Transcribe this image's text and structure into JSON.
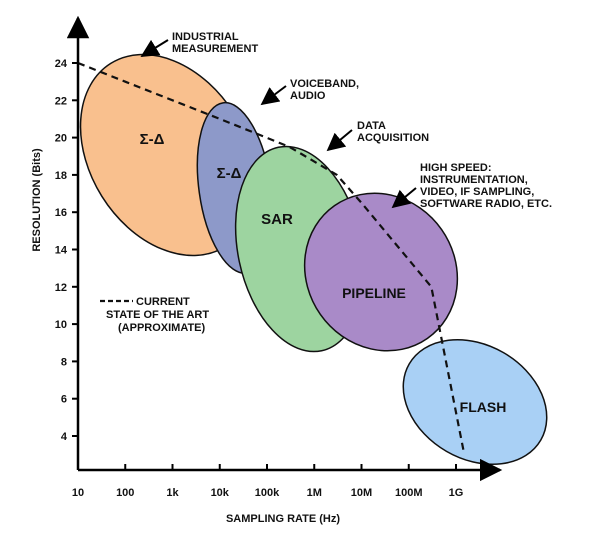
{
  "chart_data": {
    "type": "diagram",
    "xlabel": "SAMPLING RATE (Hz)",
    "ylabel": "RESOLUTION (Bits)",
    "x_ticks": [
      "10",
      "100",
      "1k",
      "10k",
      "100k",
      "1M",
      "10M",
      "100M",
      "1G"
    ],
    "y_ticks": [
      "4",
      "6",
      "8",
      "10",
      "12",
      "14",
      "16",
      "18",
      "20",
      "22",
      "24"
    ],
    "x_scale": "log",
    "grid": false,
    "regions": [
      {
        "label": "Σ-Δ",
        "color": "#f9c08e",
        "callout": [
          "INDUSTRIAL",
          "MEASUREMENT"
        ]
      },
      {
        "label": "Σ-Δ",
        "color": "#8d99c9",
        "callout": [
          "VOICEBAND,",
          "AUDIO"
        ]
      },
      {
        "label": "SAR",
        "color": "#9dd4a0",
        "callout": [
          "DATA",
          "ACQUISITION"
        ]
      },
      {
        "label": "PIPELINE",
        "color": "#a98ac8",
        "callout": [
          "HIGH SPEED:",
          "INSTRUMENTATION,",
          "VIDEO, IF SAMPLING,",
          "SOFTWARE RADIO, ETC."
        ]
      },
      {
        "label": "FLASH",
        "color": "#a9d0f5",
        "callout": []
      }
    ],
    "legend": {
      "entry": [
        "CURRENT",
        "STATE OF THE ART",
        "(APPROXIMATE)"
      ],
      "line_style": "dashed"
    },
    "state_of_the_art_line": {
      "x": [
        10,
        100,
        10000,
        300000,
        3000000,
        10000000,
        300000000,
        1500000000
      ],
      "y": [
        24,
        23,
        21,
        19.5,
        18,
        16.5,
        12,
        3
      ]
    }
  }
}
